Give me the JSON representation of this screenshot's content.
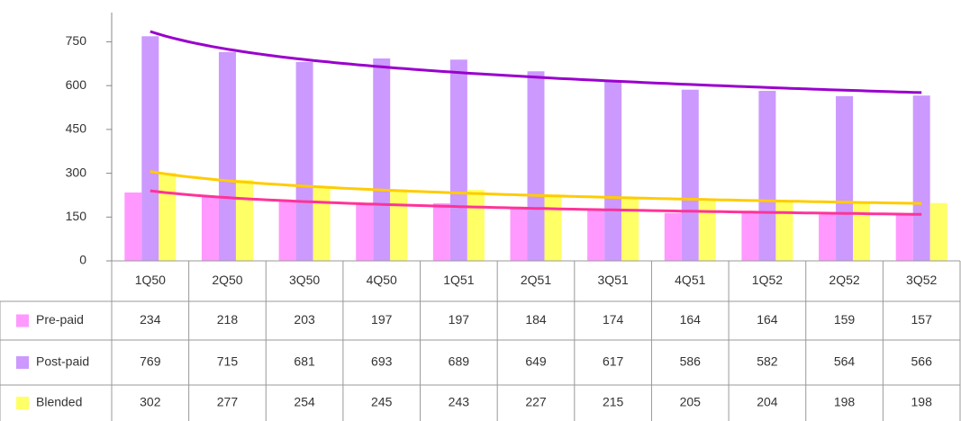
{
  "chart_data": {
    "type": "bar",
    "categories": [
      "1Q50",
      "2Q50",
      "3Q50",
      "4Q50",
      "1Q51",
      "2Q51",
      "3Q51",
      "4Q51",
      "1Q52",
      "2Q52",
      "3Q52"
    ],
    "series": [
      {
        "name": "Pre-paid",
        "color": "#ff99ff",
        "trendline_color": "#ff3399",
        "values": [
          234,
          218,
          203,
          197,
          197,
          184,
          174,
          164,
          164,
          159,
          157
        ]
      },
      {
        "name": "Post-paid",
        "color": "#cc99ff",
        "trendline_color": "#9900cc",
        "values": [
          769,
          715,
          681,
          693,
          689,
          649,
          617,
          586,
          582,
          564,
          566
        ]
      },
      {
        "name": "Blended",
        "color": "#ffff66",
        "trendline_color": "#ffcc00",
        "values": [
          302,
          277,
          254,
          245,
          243,
          227,
          215,
          205,
          204,
          198,
          198
        ]
      }
    ],
    "trendline": "logarithmic",
    "ylim": [
      0,
      850
    ],
    "yticks": [
      0,
      150,
      300,
      450,
      600,
      750
    ],
    "grid": false
  }
}
